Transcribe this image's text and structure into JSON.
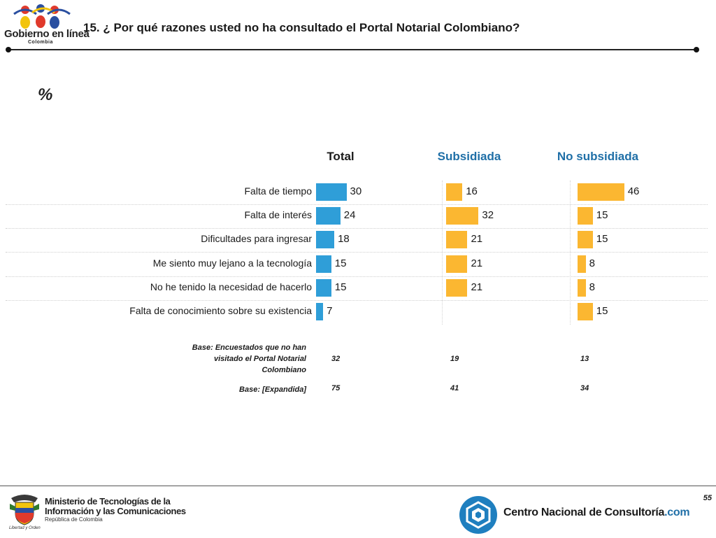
{
  "header": {
    "logo_text": "Gobierno en línea",
    "logo_subtext": "Colombia",
    "question": "15. ¿ Por qué razones usted no ha consultado el Portal Notarial Colombiano?"
  },
  "unit_label": "%",
  "chart_data": {
    "type": "bar",
    "orientation": "horizontal",
    "categories": [
      "Falta de tiempo",
      "Falta de interés",
      "Dificultades para ingresar",
      "Me siento muy lejano a la tecnología",
      "No he tenido la necesidad de hacerlo",
      "Falta de conocimiento sobre su existencia"
    ],
    "series": [
      {
        "name": "Total",
        "color": "#2f9ed8",
        "values": [
          30,
          24,
          18,
          15,
          15,
          7
        ]
      },
      {
        "name": "Subsidiada",
        "color": "#fbb731",
        "values": [
          16,
          32,
          21,
          21,
          21,
          null
        ]
      },
      {
        "name": "No subsidiada",
        "color": "#fbb731",
        "values": [
          46,
          15,
          15,
          8,
          8,
          15
        ]
      }
    ],
    "layout": "small-multiples (one panel per series)"
  },
  "base": {
    "rows": [
      {
        "label": "Base: Encuestados que no han visitado el Portal Notarial Colombiano",
        "values": [
          "32",
          "19",
          "13"
        ]
      },
      {
        "label": "Base: [Expandida]",
        "values": [
          "75",
          "41",
          "34"
        ]
      }
    ]
  },
  "footer": {
    "page_number": "55",
    "ministry_line1": "Ministerio de Tecnologías de la",
    "ministry_line2": "Información y las Comunicaciones",
    "ministry_line3": "República de Colombia",
    "crest_caption": "Libertad y Orden",
    "cnc_name": "Centro Nacional de Consultoría",
    "cnc_suffix": ".com"
  },
  "colors": {
    "blue_bar": "#2f9ed8",
    "orange_bar": "#fbb731",
    "header_accent": "#1f6fa7"
  }
}
